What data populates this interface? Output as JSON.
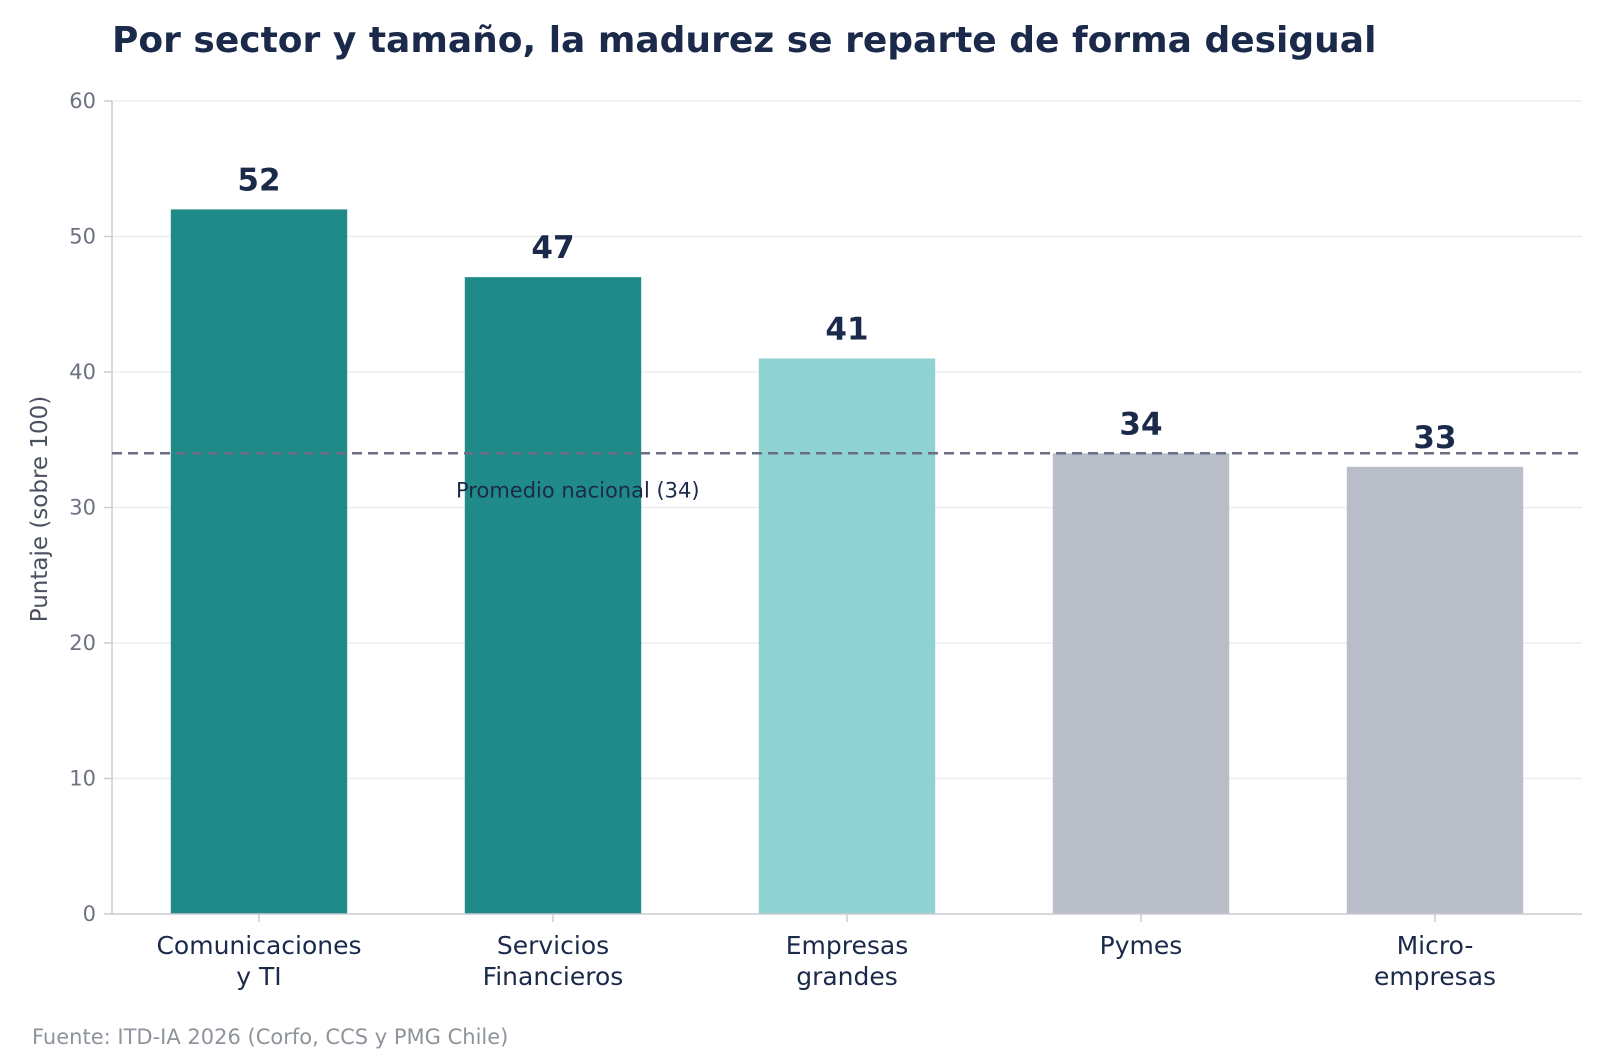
{
  "chart_data": {
    "type": "bar",
    "title": "Por sector y tamaño, la madurez se reparte de forma desigual",
    "source": "Fuente: ITD-IA 2026 (Corfo, CCS y PMG Chile)",
    "ylabel": "Puntaje (sobre 100)",
    "xlabel": "",
    "ylim": [
      0,
      60
    ],
    "yticks": [
      0,
      10,
      20,
      30,
      40,
      50,
      60
    ],
    "grid": "horizontal",
    "categories": [
      [
        "Comunicaciones",
        "y TI"
      ],
      [
        "Servicios",
        "Financieros"
      ],
      [
        "Empresas",
        "grandes"
      ],
      [
        "Pymes"
      ],
      [
        "Micro-",
        "empresas"
      ]
    ],
    "values": [
      52,
      47,
      41,
      34,
      33
    ],
    "bar_colors": [
      "#1f8a87",
      "#1f8a87",
      "#90d2d1",
      "#b8bdc7",
      "#b8bdc7"
    ],
    "reference_line": {
      "value": 34,
      "label": "Promedio nacional (34)",
      "color": "#6b6d85"
    }
  }
}
